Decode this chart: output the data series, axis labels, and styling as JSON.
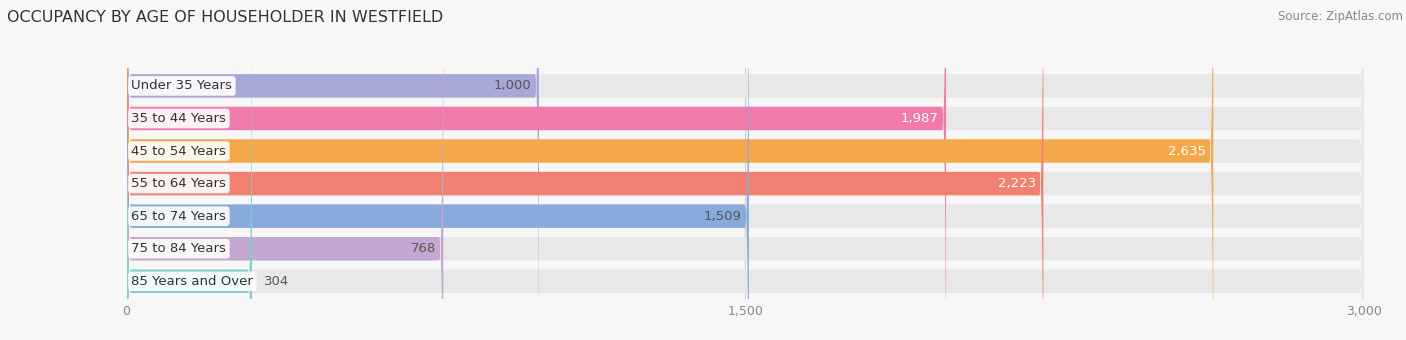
{
  "title": "OCCUPANCY BY AGE OF HOUSEHOLDER IN WESTFIELD",
  "source": "Source: ZipAtlas.com",
  "categories": [
    "Under 35 Years",
    "35 to 44 Years",
    "45 to 54 Years",
    "55 to 64 Years",
    "65 to 74 Years",
    "75 to 84 Years",
    "85 Years and Over"
  ],
  "values": [
    1000,
    1987,
    2635,
    2223,
    1509,
    768,
    304
  ],
  "bar_colors": [
    "#a8a8d8",
    "#f07aaa",
    "#f5a84a",
    "#f08070",
    "#88aadd",
    "#c4a8d0",
    "#7ecece"
  ],
  "bar_bg_color": "#e8e8e8",
  "value_colors": [
    "#555555",
    "#ffffff",
    "#ffffff",
    "#ffffff",
    "#555555",
    "#555555",
    "#555555"
  ],
  "xlim": [
    0,
    3000
  ],
  "xticks": [
    0,
    1500,
    3000
  ],
  "xtick_labels": [
    "0",
    "1,500",
    "3,000"
  ],
  "background_color": "#f7f7f7",
  "bar_height": 0.72,
  "title_fontsize": 11.5,
  "source_fontsize": 8.5,
  "label_fontsize": 9.5,
  "value_fontsize": 9.5
}
